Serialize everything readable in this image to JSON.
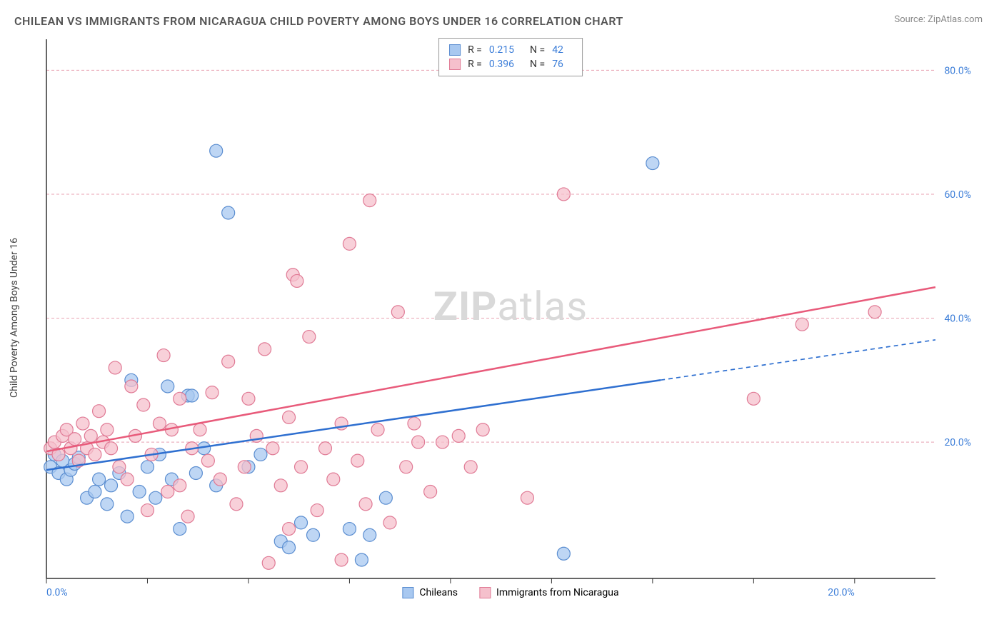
{
  "title": "CHILEAN VS IMMIGRANTS FROM NICARAGUA CHILD POVERTY AMONG BOYS UNDER 16 CORRELATION CHART",
  "source": "Source: ZipAtlas.com",
  "ylabel": "Child Poverty Among Boys Under 16",
  "watermark_bold": "ZIP",
  "watermark_rest": "atlas",
  "chart": {
    "type": "scatter",
    "xlim": [
      0,
      22
    ],
    "ylim": [
      -2,
      85
    ],
    "xtick_positions": [
      0,
      2.5,
      5,
      7.5,
      10,
      12.5,
      15,
      17.5,
      20
    ],
    "xtick_labels": [
      "0.0%",
      "",
      "",
      "",
      "",
      "",
      "",
      "",
      "20.0%"
    ],
    "ytick_positions": [
      20,
      40,
      60,
      80
    ],
    "ytick_labels": [
      "20.0%",
      "40.0%",
      "60.0%",
      "80.0%"
    ],
    "grid_color": "#e8a0b0",
    "grid_dash": "4,3",
    "axis_color": "#333333",
    "background_color": "#ffffff",
    "series": [
      {
        "name": "Chileans",
        "marker_color": "#a8c8f0",
        "marker_border": "#5a8dd0",
        "marker_opacity": 0.75,
        "marker_radius": 9,
        "line_color": "#2e6fd0",
        "line_width": 2.5,
        "trend": {
          "x1": 0,
          "y1": 15.5,
          "x2": 22,
          "y2": 36.5,
          "solid_until_x": 15.2
        },
        "R": "0.215",
        "N": "42",
        "points": [
          [
            0.1,
            16
          ],
          [
            0.2,
            18
          ],
          [
            0.3,
            15
          ],
          [
            0.4,
            17
          ],
          [
            0.5,
            14
          ],
          [
            0.6,
            15.5
          ],
          [
            0.7,
            16.5
          ],
          [
            0.8,
            17.5
          ],
          [
            1.0,
            11
          ],
          [
            1.2,
            12
          ],
          [
            1.3,
            14
          ],
          [
            1.5,
            10
          ],
          [
            1.6,
            13
          ],
          [
            1.8,
            15
          ],
          [
            2.0,
            8
          ],
          [
            2.1,
            30
          ],
          [
            2.3,
            12
          ],
          [
            2.5,
            16
          ],
          [
            2.7,
            11
          ],
          [
            2.8,
            18
          ],
          [
            3.0,
            29
          ],
          [
            3.1,
            14
          ],
          [
            3.3,
            6
          ],
          [
            3.5,
            27.5
          ],
          [
            3.6,
            27.5
          ],
          [
            3.7,
            15
          ],
          [
            3.9,
            19
          ],
          [
            4.2,
            13
          ],
          [
            4.2,
            67
          ],
          [
            4.5,
            57
          ],
          [
            5.0,
            16
          ],
          [
            5.3,
            18
          ],
          [
            5.8,
            4
          ],
          [
            6.0,
            3
          ],
          [
            6.3,
            7
          ],
          [
            6.6,
            5
          ],
          [
            7.5,
            6
          ],
          [
            7.8,
            1
          ],
          [
            8.0,
            5
          ],
          [
            12.8,
            2
          ],
          [
            15.0,
            65
          ],
          [
            8.4,
            11
          ]
        ]
      },
      {
        "name": "Immigrants from Nicaragua",
        "marker_color": "#f5c0cc",
        "marker_border": "#e07a95",
        "marker_opacity": 0.75,
        "marker_radius": 9,
        "line_color": "#e85a7a",
        "line_width": 2.5,
        "trend": {
          "x1": 0,
          "y1": 18.5,
          "x2": 22,
          "y2": 45,
          "solid_until_x": 22
        },
        "R": "0.396",
        "N": "76",
        "points": [
          [
            0.1,
            19
          ],
          [
            0.2,
            20
          ],
          [
            0.3,
            18
          ],
          [
            0.4,
            21
          ],
          [
            0.5,
            22
          ],
          [
            0.6,
            19
          ],
          [
            0.7,
            20.5
          ],
          [
            0.8,
            17
          ],
          [
            0.9,
            23
          ],
          [
            1.0,
            19
          ],
          [
            1.1,
            21
          ],
          [
            1.2,
            18
          ],
          [
            1.3,
            25
          ],
          [
            1.4,
            20
          ],
          [
            1.5,
            22
          ],
          [
            1.6,
            19
          ],
          [
            1.7,
            32
          ],
          [
            1.8,
            16
          ],
          [
            2.0,
            14
          ],
          [
            2.1,
            29
          ],
          [
            2.2,
            21
          ],
          [
            2.4,
            26
          ],
          [
            2.5,
            9
          ],
          [
            2.6,
            18
          ],
          [
            2.8,
            23
          ],
          [
            2.9,
            34
          ],
          [
            3.0,
            12
          ],
          [
            3.1,
            22
          ],
          [
            3.3,
            27
          ],
          [
            3.3,
            13
          ],
          [
            3.5,
            8
          ],
          [
            3.6,
            19
          ],
          [
            3.8,
            22
          ],
          [
            4.0,
            17
          ],
          [
            4.1,
            28
          ],
          [
            4.3,
            14
          ],
          [
            4.5,
            33
          ],
          [
            4.7,
            10
          ],
          [
            4.9,
            16
          ],
          [
            5.0,
            27
          ],
          [
            5.2,
            21
          ],
          [
            5.4,
            35
          ],
          [
            5.6,
            19
          ],
          [
            5.8,
            13
          ],
          [
            6.0,
            24
          ],
          [
            6.1,
            47
          ],
          [
            6.2,
            46
          ],
          [
            6.3,
            16
          ],
          [
            6.5,
            37
          ],
          [
            6.7,
            9
          ],
          [
            6.9,
            19
          ],
          [
            7.1,
            14
          ],
          [
            7.3,
            23
          ],
          [
            7.5,
            52
          ],
          [
            7.7,
            17
          ],
          [
            7.9,
            10
          ],
          [
            8.0,
            59
          ],
          [
            8.2,
            22
          ],
          [
            8.5,
            7
          ],
          [
            8.7,
            41
          ],
          [
            8.9,
            16
          ],
          [
            9.1,
            23
          ],
          [
            9.2,
            20
          ],
          [
            9.5,
            12
          ],
          [
            9.8,
            20
          ],
          [
            10.2,
            21
          ],
          [
            10.5,
            16
          ],
          [
            10.8,
            22
          ],
          [
            11.9,
            11
          ],
          [
            12.8,
            60
          ],
          [
            7.3,
            1
          ],
          [
            17.5,
            27
          ],
          [
            18.7,
            39
          ],
          [
            20.5,
            41
          ],
          [
            5.5,
            0.5
          ],
          [
            6.0,
            6
          ]
        ]
      }
    ],
    "legend_bottom": [
      {
        "label": "Chileans",
        "fill": "#a8c8f0",
        "border": "#5a8dd0"
      },
      {
        "label": "Immigrants from Nicaragua",
        "fill": "#f5c0cc",
        "border": "#e07a95"
      }
    ]
  }
}
